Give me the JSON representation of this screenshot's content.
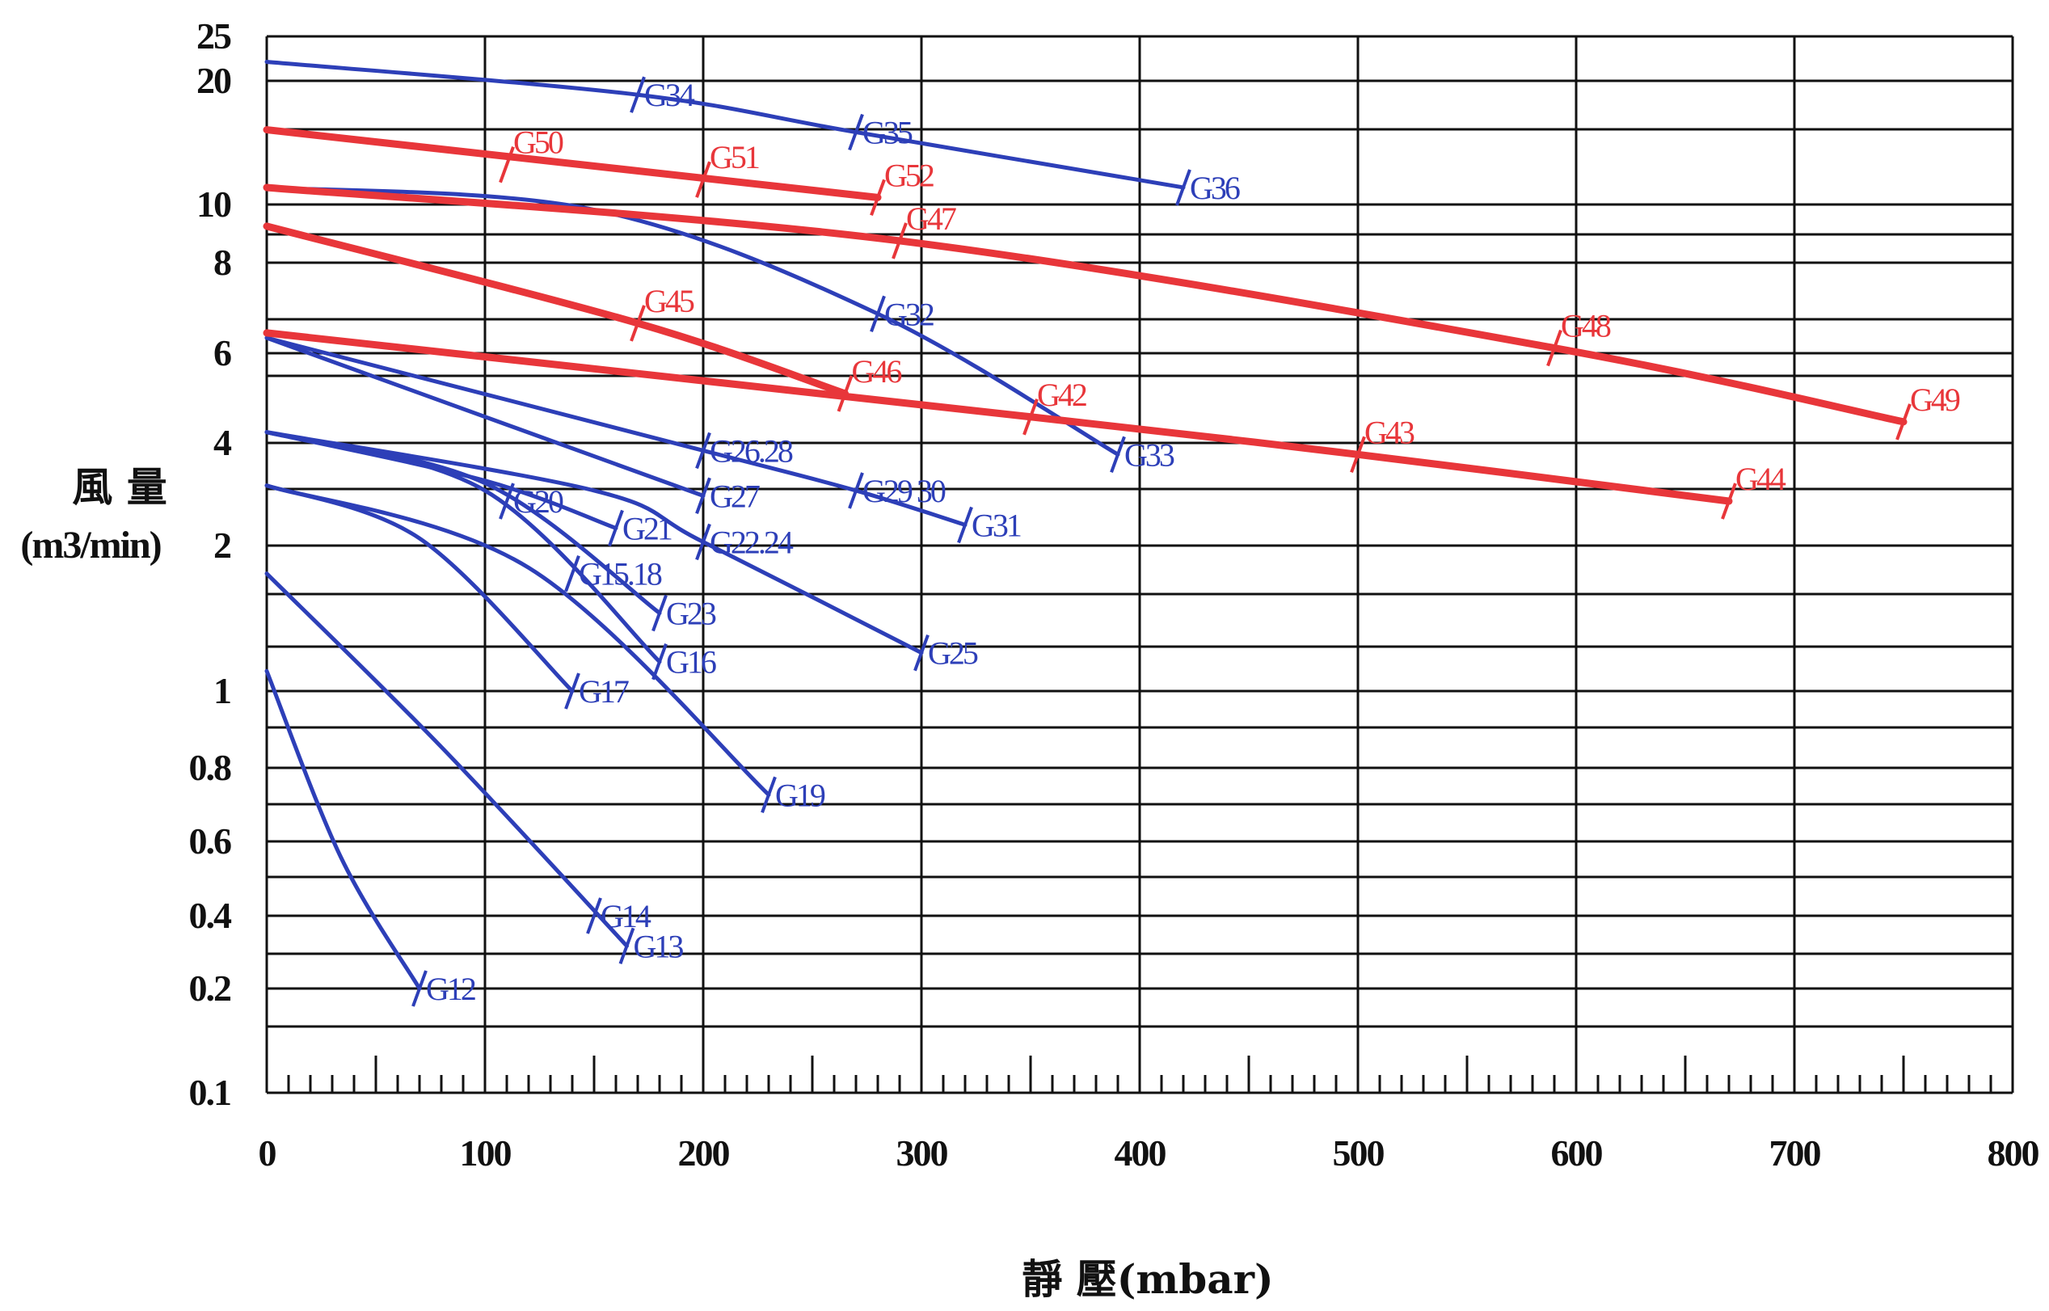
{
  "chart_data": {
    "type": "line",
    "title": "",
    "xlabel": "靜 壓(mbar)",
    "ylabel": "風 量",
    "ylabel_unit": "(m3/min)",
    "x_scale": "linear",
    "y_scale": "log (ticks not evenly spaced)",
    "xlim": [
      0,
      800
    ],
    "ylim": [
      0.1,
      25
    ],
    "x_ticks": [
      0,
      100,
      200,
      300,
      400,
      500,
      600,
      700,
      800
    ],
    "y_ticks": [
      0.1,
      0.2,
      0.4,
      0.6,
      0.8,
      1,
      2,
      4,
      6,
      8,
      10,
      20,
      25
    ],
    "grid": true,
    "colors": {
      "blue": "#2d3fb8",
      "red": "#e8363a",
      "grid": "#111111"
    },
    "series": [
      {
        "color": "blue",
        "x": [
          0,
          34,
          70
        ],
        "y": [
          1.1,
          0.55,
          0.2
        ],
        "labels": [
          {
            "text": "G12",
            "x": 70,
            "y": 0.2
          }
        ]
      },
      {
        "color": "blue",
        "x": [
          0,
          80,
          165
        ],
        "y": [
          1.75,
          0.85,
          0.3
        ],
        "labels": [
          {
            "text": "G13",
            "x": 165,
            "y": 0.3
          },
          {
            "text": "G14",
            "x": 150,
            "y": 0.4
          }
        ]
      },
      {
        "color": "blue",
        "x": [
          0,
          70,
          140
        ],
        "y": [
          3.0,
          2.1,
          1.0
        ],
        "labels": [
          {
            "text": "G17",
            "x": 140,
            "y": 1.0
          }
        ]
      },
      {
        "color": "blue",
        "x": [
          0,
          120,
          230
        ],
        "y": [
          3.0,
          1.8,
          0.72
        ],
        "labels": [
          {
            "text": "G19",
            "x": 230,
            "y": 0.72
          }
        ]
      },
      {
        "color": "blue",
        "x": [
          0,
          100,
          180
        ],
        "y": [
          4.2,
          2.9,
          1.15
        ],
        "labels": [
          {
            "text": "G15.18",
            "x": 140,
            "y": 1.75
          },
          {
            "text": "G16",
            "x": 180,
            "y": 1.15
          }
        ]
      },
      {
        "color": "blue",
        "x": [
          0,
          100,
          180
        ],
        "y": [
          4.2,
          3.05,
          1.45
        ],
        "labels": [
          {
            "text": "G23",
            "x": 180,
            "y": 1.45
          }
        ]
      },
      {
        "color": "blue",
        "x": [
          0,
          100,
          160
        ],
        "y": [
          4.2,
          3.1,
          2.25
        ],
        "labels": [
          {
            "text": "G20",
            "x": 110,
            "y": 2.7
          },
          {
            "text": "G21",
            "x": 160,
            "y": 2.25
          }
        ]
      },
      {
        "color": "blue",
        "x": [
          0,
          150,
          200,
          300
        ],
        "y": [
          4.2,
          2.9,
          2.05,
          1.2
        ],
        "labels": [
          {
            "text": "G22.24",
            "x": 200,
            "y": 2.05
          },
          {
            "text": "G25",
            "x": 300,
            "y": 1.2
          }
        ]
      },
      {
        "color": "blue",
        "x": [
          0,
          200
        ],
        "y": [
          6.3,
          2.8
        ],
        "labels": [
          {
            "text": "G27",
            "x": 200,
            "y": 2.8
          }
        ]
      },
      {
        "color": "blue",
        "x": [
          0,
          200,
          270,
          320
        ],
        "y": [
          6.3,
          3.8,
          2.9,
          2.3
        ],
        "labels": [
          {
            "text": "G26.28",
            "x": 200,
            "y": 3.8
          },
          {
            "text": "G29 30",
            "x": 270,
            "y": 2.9
          },
          {
            "text": "G31",
            "x": 320,
            "y": 2.3
          }
        ]
      },
      {
        "color": "blue",
        "x": [
          0,
          150,
          280,
          390
        ],
        "y": [
          11,
          9.8,
          6.8,
          3.7
        ],
        "labels": [
          {
            "text": "G32",
            "x": 280,
            "y": 6.8
          },
          {
            "text": "G33",
            "x": 390,
            "y": 3.7
          }
        ]
      },
      {
        "color": "blue",
        "x": [
          0,
          170,
          270,
          420
        ],
        "y": [
          22,
          18.5,
          15,
          11
        ],
        "labels": [
          {
            "text": "G34",
            "x": 170,
            "y": 18.5
          },
          {
            "text": "G35",
            "x": 270,
            "y": 15
          },
          {
            "text": "G36",
            "x": 420,
            "y": 11
          }
        ]
      },
      {
        "color": "red",
        "x": [
          0,
          280
        ],
        "y": [
          15.2,
          10.4
        ],
        "labels": [
          {
            "text": "G50",
            "x": 110,
            "y": 12.5
          },
          {
            "text": "G51",
            "x": 200,
            "y": 11.5
          },
          {
            "text": "G52",
            "x": 280,
            "y": 10.4
          }
        ]
      },
      {
        "color": "red",
        "x": [
          0,
          290,
          590,
          750
        ],
        "y": [
          11,
          8.7,
          6.1,
          4.4
        ],
        "labels": [
          {
            "text": "G47",
            "x": 290,
            "y": 8.7
          },
          {
            "text": "G48",
            "x": 590,
            "y": 6.1
          },
          {
            "text": "G49",
            "x": 750,
            "y": 4.4
          }
        ]
      },
      {
        "color": "red",
        "x": [
          0,
          170,
          265
        ],
        "y": [
          9.2,
          6.6,
          5.0
        ],
        "labels": [
          {
            "text": "G45",
            "x": 170,
            "y": 6.6
          },
          {
            "text": "G46",
            "x": 265,
            "y": 5.0
          }
        ]
      },
      {
        "color": "red",
        "x": [
          0,
          350,
          500,
          670
        ],
        "y": [
          6.4,
          4.5,
          3.7,
          2.7
        ],
        "labels": [
          {
            "text": "G42",
            "x": 350,
            "y": 4.5
          },
          {
            "text": "G43",
            "x": 500,
            "y": 3.7
          },
          {
            "text": "G44",
            "x": 670,
            "y": 2.7
          }
        ]
      }
    ]
  }
}
